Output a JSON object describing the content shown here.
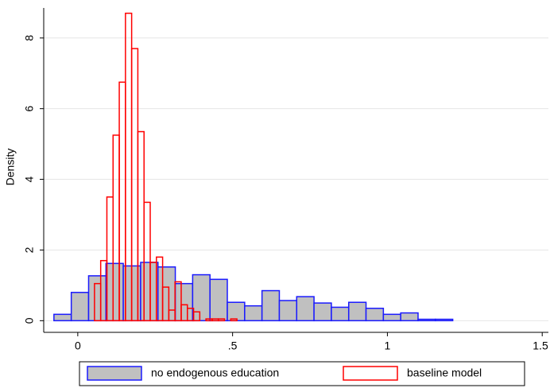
{
  "chart_data": {
    "type": "histogram",
    "ylabel": "Density",
    "xlim": [
      -0.11,
      1.52
    ],
    "ylim": [
      -0.33,
      8.85
    ],
    "xticks": [
      0,
      {
        "value": 0.5,
        "label": ".5"
      },
      1,
      1.5
    ],
    "yticks": [
      0,
      2,
      4,
      6,
      8
    ],
    "grid": true,
    "legend": "bottom",
    "series": [
      {
        "name": "no endogenous education",
        "color": "#c0c0c0",
        "edgecolor": "#1a1aff",
        "bins": [
          -0.077,
          -0.021,
          0.035,
          0.091,
          0.147,
          0.203,
          0.259,
          0.315,
          0.371,
          0.427,
          0.483,
          0.539,
          0.595,
          0.651,
          0.707,
          0.763,
          0.819,
          0.875,
          0.931,
          0.987,
          1.043,
          1.099,
          1.155,
          1.211
        ],
        "values": [
          0.18,
          0.8,
          1.27,
          1.62,
          1.55,
          1.65,
          1.52,
          1.05,
          1.3,
          1.17,
          0.52,
          0.42,
          0.85,
          0.57,
          0.68,
          0.5,
          0.38,
          0.52,
          0.35,
          0.18,
          0.22,
          0.04,
          0.04
        ]
      },
      {
        "name": "baseline model",
        "color": "none",
        "edgecolor": "#ff0000",
        "bins": [
          0.054,
          0.074,
          0.094,
          0.114,
          0.134,
          0.154,
          0.174,
          0.194,
          0.214,
          0.234,
          0.254,
          0.274,
          0.294,
          0.314,
          0.334,
          0.354,
          0.374,
          0.394,
          0.414,
          0.434,
          0.454,
          0.474,
          0.494,
          0.514
        ],
        "values": [
          1.05,
          1.7,
          3.5,
          5.25,
          6.75,
          8.7,
          7.7,
          5.35,
          3.35,
          1.65,
          1.8,
          0.95,
          0.3,
          1.1,
          0.45,
          0.35,
          0.25,
          0,
          0.05,
          0.05,
          0.05,
          0,
          0.05
        ]
      }
    ]
  }
}
